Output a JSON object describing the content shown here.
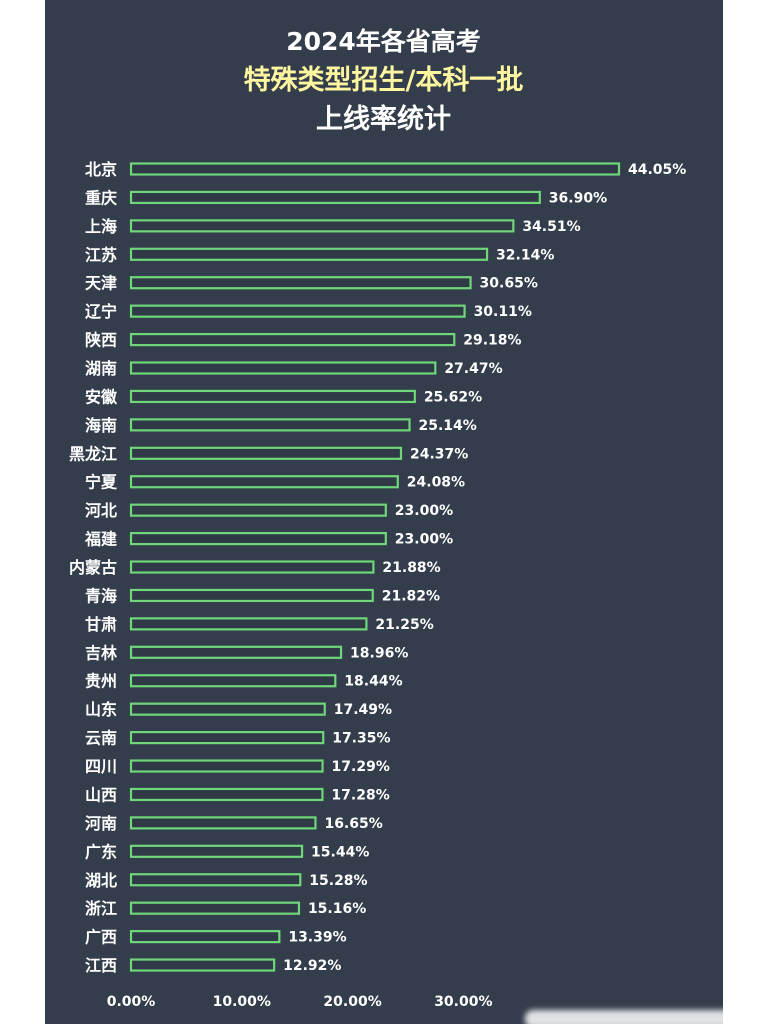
{
  "chart_data": {
    "type": "bar",
    "orientation": "horizontal",
    "title": [
      "2024年各省高考",
      "特殊类型招生/本科一批",
      "上线率统计"
    ],
    "categories": [
      "北京",
      "重庆",
      "上海",
      "江苏",
      "天津",
      "辽宁",
      "陕西",
      "湖南",
      "安徽",
      "海南",
      "黑龙江",
      "宁夏",
      "河北",
      "福建",
      "内蒙古",
      "青海",
      "甘肃",
      "吉林",
      "贵州",
      "山东",
      "云南",
      "四川",
      "山西",
      "河南",
      "广东",
      "湖北",
      "浙江",
      "广西",
      "江西"
    ],
    "values": [
      44.05,
      36.9,
      34.51,
      32.14,
      30.65,
      30.11,
      29.18,
      27.47,
      25.62,
      25.14,
      24.37,
      24.08,
      23.0,
      23.0,
      21.88,
      21.82,
      21.25,
      18.96,
      18.44,
      17.49,
      17.35,
      17.29,
      17.28,
      16.65,
      15.44,
      15.28,
      15.16,
      13.39,
      12.92
    ],
    "value_labels": [
      "44.05%",
      "36.90%",
      "34.51%",
      "32.14%",
      "30.65%",
      "30.11%",
      "29.18%",
      "27.47%",
      "25.62%",
      "25.14%",
      "24.37%",
      "24.08%",
      "23.00%",
      "23.00%",
      "21.88%",
      "21.82%",
      "21.25%",
      "18.96%",
      "18.44%",
      "17.49%",
      "17.35%",
      "17.29%",
      "17.28%",
      "16.65%",
      "15.44%",
      "15.28%",
      "15.16%",
      "13.39%",
      "12.92%"
    ],
    "x_ticks": [
      0,
      10,
      20,
      30
    ],
    "x_tick_labels": [
      "0.00%",
      "10.00%",
      "20.00%",
      "30.00%"
    ],
    "xlim": [
      0,
      44.05
    ],
    "grid": false,
    "colors": {
      "background": "#333d4b",
      "bar_outline": "#6fd67a",
      "title_highlight": "#fff6a0"
    }
  }
}
